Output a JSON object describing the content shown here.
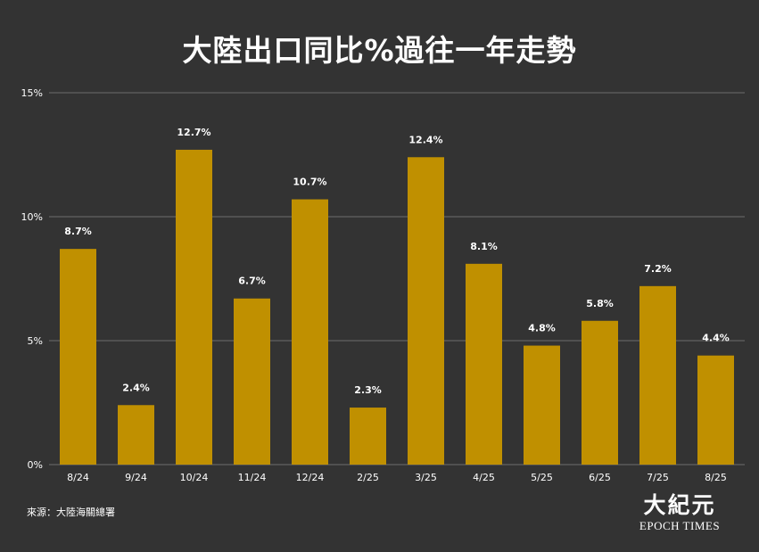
{
  "colors": {
    "background": "#333333",
    "bar": "#c09000",
    "grid": "#6e6e6e",
    "text": "#ffffff"
  },
  "source_note": "來源：大陸海關總署",
  "logo": {
    "cn": "大紀元",
    "en": "EPOCH TIMES"
  },
  "chart_data": {
    "type": "bar",
    "title": "大陸出口同比%過往一年走勢",
    "categories": [
      "8/24",
      "9/24",
      "10/24",
      "11/24",
      "12/24",
      "2/25",
      "3/25",
      "4/25",
      "5/25",
      "6/25",
      "7/25",
      "8/25"
    ],
    "values": [
      8.7,
      2.4,
      12.7,
      6.7,
      10.7,
      2.3,
      12.4,
      8.1,
      4.8,
      5.8,
      7.2,
      4.4
    ],
    "value_labels": [
      "8.7%",
      "2.4%",
      "12.7%",
      "6.7%",
      "10.7%",
      "2.3%",
      "12.4%",
      "8.1%",
      "4.8%",
      "5.8%",
      "7.2%",
      "4.4%"
    ],
    "y_ticks": [
      0,
      5,
      10,
      15
    ],
    "y_tick_labels": [
      "0%",
      "5%",
      "10%",
      "15%"
    ],
    "ylim": [
      0,
      15
    ],
    "grid": true,
    "legend": "none"
  }
}
